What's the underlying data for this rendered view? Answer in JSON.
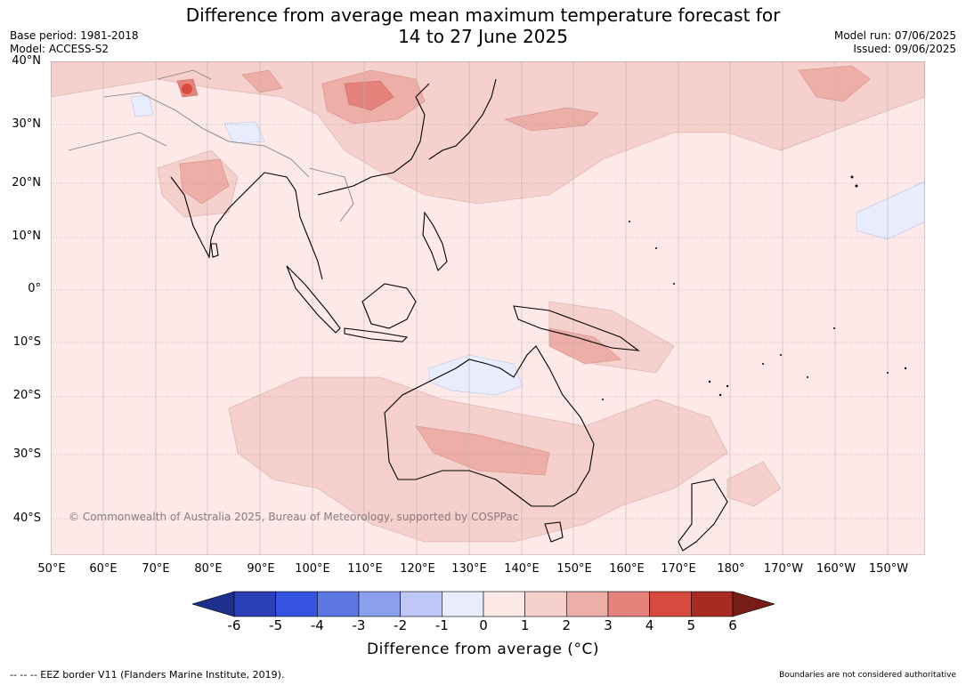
{
  "title": {
    "line1": "Difference from average mean maximum temperature forecast for",
    "line2": "14 to 27 June 2025"
  },
  "meta_left": {
    "base_period": "Base period: 1981-2018",
    "model": "Model: ACCESS-S2"
  },
  "meta_right": {
    "model_run": "Model run: 07/06/2025",
    "issued": "Issued: 09/06/2025"
  },
  "lat_labels": [
    "40°N",
    "30°N",
    "20°N",
    "10°N",
    "0°",
    "10°S",
    "20°S",
    "30°S",
    "40°S"
  ],
  "lon_labels": [
    "50°E",
    "60°E",
    "70°E",
    "80°E",
    "90°E",
    "100°E",
    "110°E",
    "120°E",
    "130°E",
    "140°E",
    "150°E",
    "160°E",
    "170°E",
    "180°",
    "170°W",
    "160°W",
    "150°W"
  ],
  "colorbar": {
    "ticks": [
      "-6",
      "-5",
      "-4",
      "-3",
      "-2",
      "-1",
      "0",
      "1",
      "2",
      "3",
      "4",
      "5",
      "6"
    ],
    "colors": [
      "#1f2f8c",
      "#2a3fb8",
      "#3353e0",
      "#5d78e4",
      "#8a9fee",
      "#bfc7f7",
      "#e8ecfc",
      "#fce9e8",
      "#f5d0cc",
      "#eeaea8",
      "#e6827c",
      "#d94a3e",
      "#a82a22",
      "#751d16"
    ],
    "label": "Difference from average (°C)"
  },
  "copyright": "© Commonwealth of Australia 2025, Bureau of Meteorology, supported by COSPPac",
  "footer": {
    "left": "--  --  -- EEZ border V11 (Flanders Marine Institute, 2019).",
    "right": "Boundaries are not considered authoritative"
  }
}
